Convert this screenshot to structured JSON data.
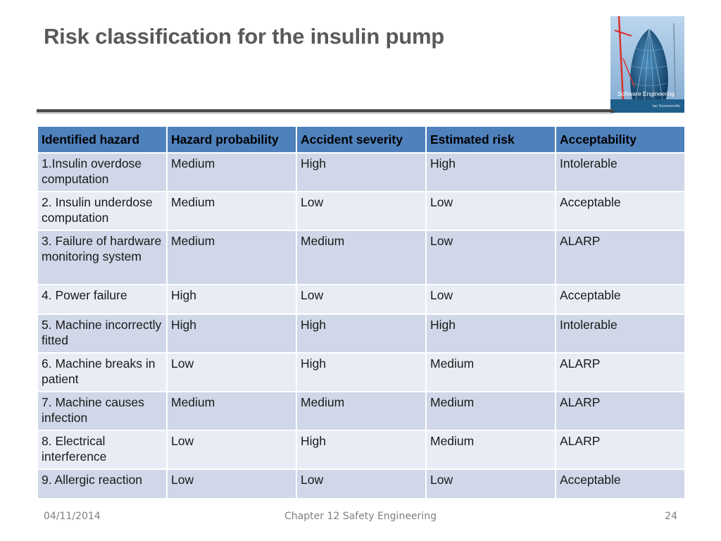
{
  "slide": {
    "title": "Risk classification for the insulin pump"
  },
  "cover_image": {
    "title": "Software Engineering",
    "author": "Ian Sommerville",
    "colors": {
      "sky": "#9fc3e6",
      "building": "#1c5a86",
      "crane": "#d8312b",
      "band": "#1f5f8b"
    }
  },
  "table": {
    "headers": [
      "Identified hazard",
      "Hazard probability",
      "Accident severity",
      "Estimated risk",
      "Acceptability"
    ],
    "rows": [
      [
        "1.Insulin overdose computation",
        "Medium",
        "High",
        "High",
        "Intolerable"
      ],
      [
        "2. Insulin underdose computation",
        "Medium",
        "Low",
        "Low",
        "Acceptable"
      ],
      [
        "3. Failure of hardware monitoring system",
        "Medium",
        "Medium",
        "Low",
        "ALARP"
      ],
      [
        "4. Power failure",
        "High",
        "Low",
        "Low",
        "Acceptable"
      ],
      [
        "5. Machine incorrectly fitted",
        "High",
        "High",
        "High",
        "Intolerable"
      ],
      [
        "6. Machine breaks in patient",
        "Low",
        "High",
        "Medium",
        "ALARP"
      ],
      [
        "7. Machine causes infection",
        "Medium",
        "Medium",
        "Medium",
        "ALARP"
      ],
      [
        "8. Electrical interference",
        "Low",
        "High",
        "Medium",
        "ALARP"
      ],
      [
        "9. Allergic reaction",
        "Low",
        "Low",
        "Low",
        "Acceptable"
      ]
    ],
    "colors": {
      "header": "#4f81bd",
      "row_odd": "#cfd7e8",
      "row_even": "#e8ecf5"
    }
  },
  "footer": {
    "date": "04/11/2014",
    "chapter": "Chapter 12 Safety Engineering",
    "page_number": "24"
  }
}
